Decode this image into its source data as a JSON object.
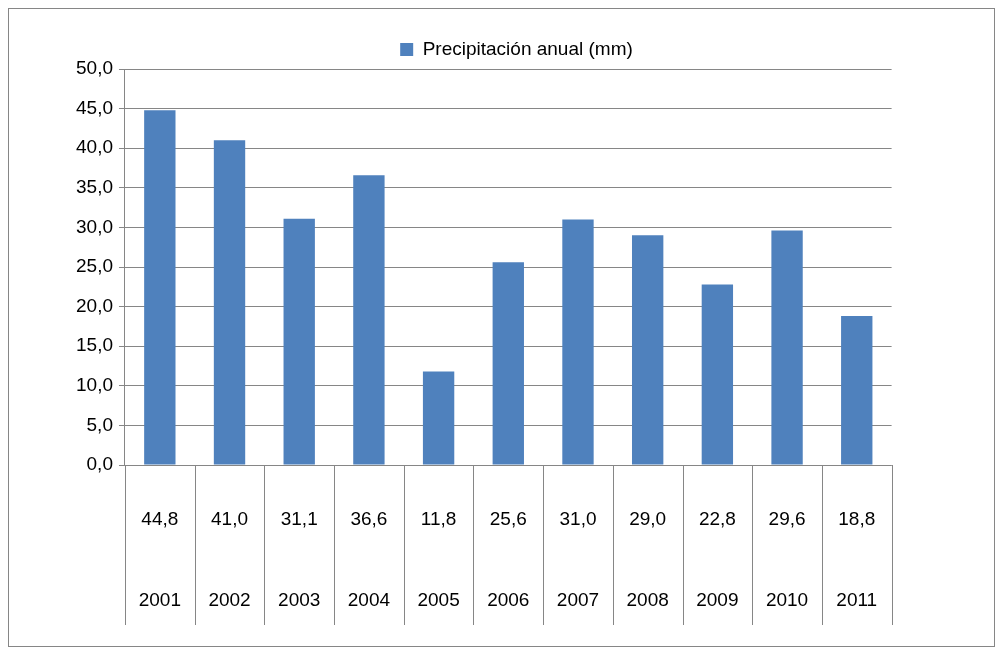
{
  "chart_data": {
    "type": "bar",
    "categories": [
      "2001",
      "2002",
      "2003",
      "2004",
      "2005",
      "2006",
      "2007",
      "2008",
      "2009",
      "2010",
      "2011"
    ],
    "series": [
      {
        "name": "Precipitación anual (mm)",
        "color": "#4f81bd",
        "values": [
          44.8,
          41.0,
          31.1,
          36.6,
          11.8,
          25.6,
          31.0,
          29.0,
          22.8,
          29.6,
          18.8
        ],
        "value_labels": [
          "44,8",
          "41,0",
          "31,1",
          "36,6",
          "11,8",
          "25,6",
          "31,0",
          "29,0",
          "22,8",
          "29,6",
          "18,8"
        ]
      }
    ],
    "ylim": [
      0,
      50
    ],
    "yticks": [
      {
        "value": 0,
        "label": "0,0"
      },
      {
        "value": 5,
        "label": "5,0"
      },
      {
        "value": 10,
        "label": "10,0"
      },
      {
        "value": 15,
        "label": "15,0"
      },
      {
        "value": 20,
        "label": "20,0"
      },
      {
        "value": 25,
        "label": "25,0"
      },
      {
        "value": 30,
        "label": "30,0"
      },
      {
        "value": 35,
        "label": "35,0"
      },
      {
        "value": 40,
        "label": "40,0"
      },
      {
        "value": 45,
        "label": "45,0"
      },
      {
        "value": 50,
        "label": "50,0"
      }
    ],
    "grid": "y",
    "legend": "top"
  }
}
